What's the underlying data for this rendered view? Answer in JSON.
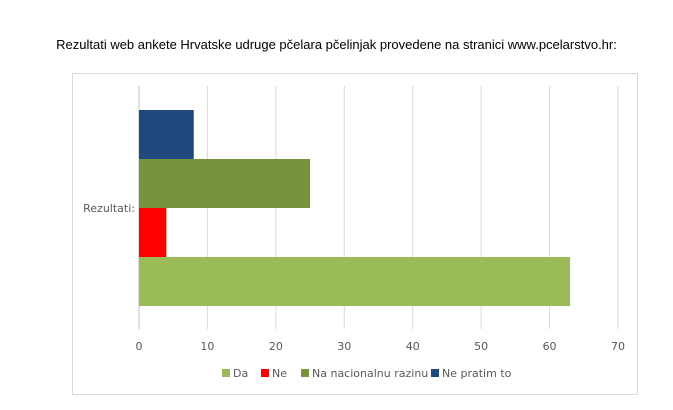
{
  "title": "Rezultati web ankete Hrvatske udruge pčelara pčelinjak provedene na stranici www.pcelarstvo.hr:",
  "chart_data": {
    "type": "bar",
    "orientation": "horizontal",
    "title": "Rezultati web ankete Hrvatske udruge pčelara pčelinjak provedene na stranici www.pcelarstvo.hr:",
    "categories": [
      "Rezultati:"
    ],
    "series": [
      {
        "name": "Da",
        "values": [
          63
        ],
        "color": "#9bbb59"
      },
      {
        "name": "Ne",
        "values": [
          4
        ],
        "color": "#ff0000"
      },
      {
        "name": "Na nacionalnu razinu",
        "values": [
          25
        ],
        "color": "#77933c"
      },
      {
        "name": "Ne pratim to",
        "values": [
          8
        ],
        "color": "#1f497d"
      }
    ],
    "xlim": [
      0,
      70
    ],
    "xticks": [
      0,
      10,
      20,
      30,
      40,
      50,
      60,
      70
    ],
    "grid": true,
    "legend": "bottom",
    "xlabel": "",
    "ylabel": ""
  }
}
